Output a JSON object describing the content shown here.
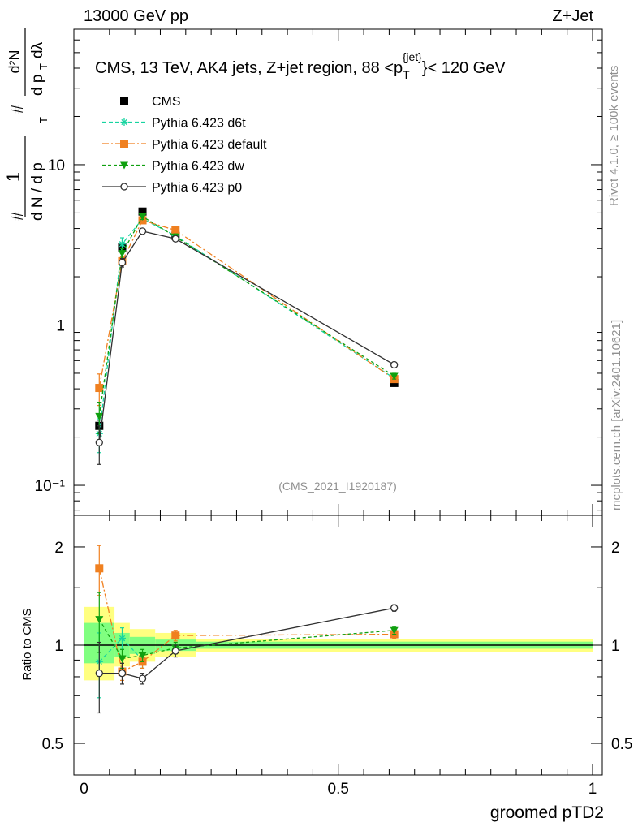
{
  "header": {
    "left": "13000 GeV pp",
    "right": "Z+Jet"
  },
  "side_labels": {
    "rivet": "Rivet 4.1.0, ≥ 100k events",
    "mcplots": "mcplots.cern.ch [arXiv:2401.10621]"
  },
  "colors": {
    "cms": "#000000",
    "d6t": "#17d4a0",
    "default": "#f08020",
    "dw": "#10a010",
    "p0": "#303030",
    "band_outer": "#ffff80",
    "band_inner": "#80ff80",
    "watermark": "#909090"
  },
  "chart_data": [
    {
      "type": "line",
      "title": "CMS, 13 TeV, AK4 jets, Z+jet region, 88 <p_T^{jet}< 120 GeV",
      "title_parts": {
        "main": "CMS, 13 TeV, AK4 jets, Z+jet region, 88 <p",
        "sub": "T",
        "sup": "{jet}",
        "end": "}< 120 GeV"
      },
      "ylabel": "1/(dN/dp_T) d²N/(dp_T dλ)",
      "ylabel_parts": {
        "lhs_num": "1",
        "lhs_den": "d N / d p",
        "rhs_num": "d²N",
        "rhs_den": "d p",
        "rhs_lambda": "dλ",
        "sub": "T",
        "hash": "#"
      },
      "xlabel": "groomed pTD2",
      "yscale": "log",
      "xlim": [
        -0.02,
        1.02
      ],
      "ylim": [
        0.065,
        70
      ],
      "yticks": [
        {
          "value": 0.1,
          "label": "10⁻¹"
        },
        {
          "value": 1,
          "label": "1"
        },
        {
          "value": 10,
          "label": "10"
        }
      ],
      "watermark": "(CMS_2021_I1920187)",
      "series": [
        {
          "name": "CMS",
          "key": "cms",
          "marker": "square",
          "x": [
            0.03,
            0.075,
            0.115,
            0.18,
            0.61
          ],
          "y": [
            0.235,
            3.05,
            5.1,
            3.6,
            0.435
          ],
          "yerr": [
            0.02,
            0.2,
            0.25,
            0.15,
            0.02
          ]
        },
        {
          "name": "Pythia 6.423 d6t",
          "key": "d6t",
          "marker": "star",
          "dash": "5,3",
          "x": [
            0.03,
            0.075,
            0.115,
            0.18,
            0.61
          ],
          "y": [
            0.21,
            3.2,
            4.6,
            3.6,
            0.465
          ],
          "yerr": [
            0.05,
            0.3,
            0.2,
            0.15,
            0.02
          ]
        },
        {
          "name": "Pythia 6.423 default",
          "key": "default",
          "marker": "square",
          "dash": "8,3,2,3",
          "x": [
            0.03,
            0.075,
            0.115,
            0.18,
            0.61
          ],
          "y": [
            0.405,
            2.5,
            4.5,
            3.9,
            0.46
          ],
          "yerr": [
            0.09,
            0.15,
            0.2,
            0.15,
            0.02
          ]
        },
        {
          "name": "Pythia 6.423 dw",
          "key": "dw",
          "marker": "triangle-down",
          "dash": "4,3",
          "x": [
            0.03,
            0.075,
            0.115,
            0.18,
            0.61
          ],
          "y": [
            0.27,
            2.8,
            4.75,
            3.55,
            0.48
          ],
          "yerr": [
            0.06,
            0.2,
            0.2,
            0.15,
            0.02
          ]
        },
        {
          "name": "Pythia 6.423 p0",
          "key": "p0",
          "marker": "circle-open",
          "dash": "",
          "x": [
            0.03,
            0.075,
            0.115,
            0.18,
            0.61
          ],
          "y": [
            0.185,
            2.45,
            3.85,
            3.45,
            0.565
          ],
          "yerr": [
            0.05,
            0.15,
            0.15,
            0.12,
            0.02
          ]
        }
      ]
    },
    {
      "type": "line",
      "ylabel": "Ratio to CMS",
      "xlabel": "groomed pTD2",
      "yscale": "log",
      "xlim": [
        -0.02,
        1.02
      ],
      "ylim": [
        0.4,
        2.5
      ],
      "xticks": [
        {
          "value": 0,
          "label": "0"
        },
        {
          "value": 0.5,
          "label": "0.5"
        },
        {
          "value": 1,
          "label": "1"
        }
      ],
      "yticks": [
        {
          "value": 0.5,
          "label": "0.5"
        },
        {
          "value": 1,
          "label": "1"
        },
        {
          "value": 2,
          "label": "2"
        }
      ],
      "bands": [
        {
          "x0": 0.0,
          "x1": 0.06,
          "outer": [
            0.78,
            1.31
          ],
          "inner": [
            0.88,
            1.17
          ]
        },
        {
          "x0": 0.06,
          "x1": 0.09,
          "outer": [
            0.86,
            1.17
          ],
          "inner": [
            0.92,
            1.09
          ]
        },
        {
          "x0": 0.09,
          "x1": 0.14,
          "outer": [
            0.89,
            1.12
          ],
          "inner": [
            0.94,
            1.06
          ]
        },
        {
          "x0": 0.14,
          "x1": 0.22,
          "outer": [
            0.92,
            1.09
          ],
          "inner": [
            0.96,
            1.04
          ]
        },
        {
          "x0": 0.22,
          "x1": 1.0,
          "outer": [
            0.955,
            1.045
          ],
          "inner": [
            0.975,
            1.025
          ]
        }
      ],
      "series": [
        {
          "name": "Pythia 6.423 d6t",
          "key": "d6t",
          "marker": "star",
          "dash": "5,3",
          "x": [
            0.03,
            0.075,
            0.115
          ],
          "y": [
            0.89,
            1.05,
            0.9
          ],
          "yerr": [
            0.2,
            0.08,
            0.05
          ]
        },
        {
          "name": "Pythia 6.423 default",
          "key": "default",
          "marker": "square",
          "dash": "8,3,2,3",
          "x": [
            0.03,
            0.075,
            0.115,
            0.18,
            0.61
          ],
          "y": [
            1.72,
            0.83,
            0.89,
            1.07,
            1.08
          ],
          "yerr": [
            0.3,
            0.05,
            0.04,
            0.04,
            0.03
          ]
        },
        {
          "name": "Pythia 6.423 dw",
          "key": "dw",
          "marker": "triangle-down",
          "dash": "4,3",
          "x": [
            0.03,
            0.075,
            0.115,
            0.18,
            0.61
          ],
          "y": [
            1.2,
            0.91,
            0.93,
            0.98,
            1.11
          ],
          "yerr": [
            0.25,
            0.06,
            0.04,
            0.04,
            0.03
          ]
        },
        {
          "name": "Pythia 6.423 p0",
          "key": "p0",
          "marker": "circle-open",
          "dash": "",
          "x": [
            0.03,
            0.075,
            0.115,
            0.18,
            0.61
          ],
          "y": [
            0.82,
            0.82,
            0.79,
            0.96,
            1.3
          ],
          "yerr": [
            0.2,
            0.06,
            0.03,
            0.04,
            0.03
          ]
        }
      ]
    }
  ]
}
